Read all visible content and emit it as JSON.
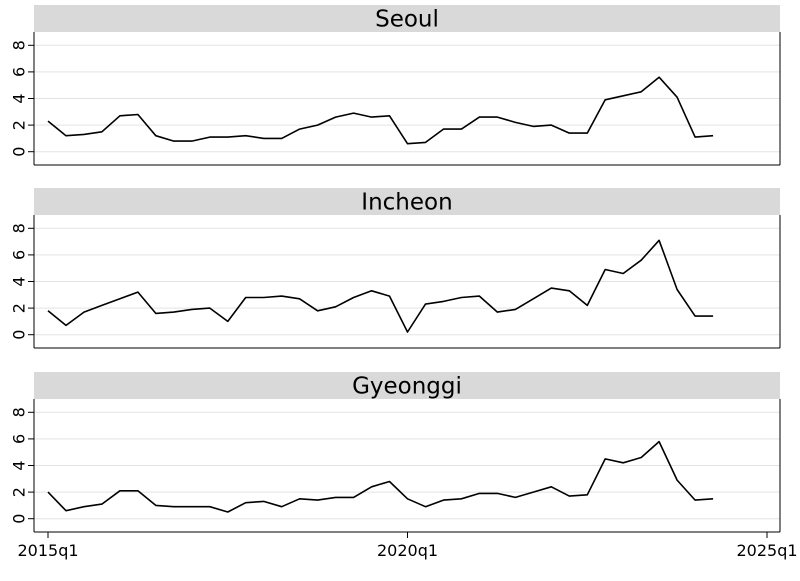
{
  "chart_data": {
    "type": "line",
    "layout": "small-multiples",
    "x": [
      "2015q1",
      "2015q2",
      "2015q3",
      "2015q4",
      "2016q1",
      "2016q2",
      "2016q3",
      "2016q4",
      "2017q1",
      "2017q2",
      "2017q3",
      "2017q4",
      "2018q1",
      "2018q2",
      "2018q3",
      "2018q4",
      "2019q1",
      "2019q2",
      "2019q3",
      "2019q4",
      "2020q1",
      "2020q2",
      "2020q3",
      "2020q4",
      "2021q1",
      "2021q2",
      "2021q3",
      "2021q4",
      "2022q1",
      "2022q2",
      "2022q3",
      "2022q4",
      "2023q1",
      "2023q2",
      "2023q3",
      "2023q4",
      "2024q1",
      "2024q2"
    ],
    "x_ticks": [
      "2015q1",
      "2020q1",
      "2025q1"
    ],
    "xlim": [
      "2015q1",
      "2025q1"
    ],
    "y_ticks": [
      0,
      2,
      4,
      6,
      8
    ],
    "ylim": [
      -1,
      9
    ],
    "grid": true,
    "panels": [
      {
        "title": "Seoul",
        "values": [
          2.3,
          1.2,
          1.3,
          1.5,
          2.7,
          2.8,
          1.2,
          0.8,
          0.8,
          1.1,
          1.1,
          1.2,
          1.0,
          1.0,
          1.7,
          2.0,
          2.6,
          2.9,
          2.6,
          2.7,
          0.6,
          0.7,
          1.7,
          1.7,
          2.6,
          2.6,
          2.2,
          1.9,
          2.0,
          1.4,
          1.4,
          3.9,
          4.2,
          4.5,
          5.6,
          4.1,
          1.1,
          1.2
        ]
      },
      {
        "title": "Incheon",
        "values": [
          1.8,
          0.7,
          1.7,
          2.2,
          2.7,
          3.2,
          1.6,
          1.7,
          1.9,
          2.0,
          1.0,
          2.8,
          2.8,
          2.9,
          2.7,
          1.8,
          2.1,
          2.8,
          3.3,
          2.9,
          0.2,
          2.3,
          2.5,
          2.8,
          2.9,
          1.7,
          1.9,
          2.7,
          3.5,
          3.3,
          2.2,
          4.9,
          4.6,
          5.6,
          7.1,
          3.4,
          1.4,
          1.4
        ]
      },
      {
        "title": "Gyeonggi",
        "values": [
          2.0,
          0.6,
          0.9,
          1.1,
          2.1,
          2.1,
          1.0,
          0.9,
          0.9,
          0.9,
          0.5,
          1.2,
          1.3,
          0.9,
          1.5,
          1.4,
          1.6,
          1.6,
          2.4,
          2.8,
          1.5,
          0.9,
          1.4,
          1.5,
          1.9,
          1.9,
          1.6,
          2.0,
          2.4,
          1.7,
          1.8,
          4.5,
          4.2,
          4.6,
          5.8,
          2.9,
          1.4,
          1.5
        ]
      }
    ]
  }
}
